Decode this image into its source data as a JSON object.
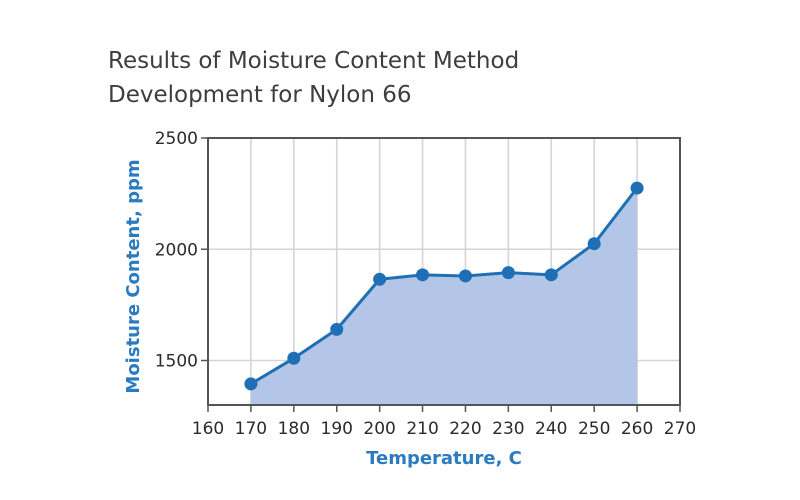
{
  "chart_data": {
    "type": "area",
    "title_lines": [
      "Results of Moisture Content Method",
      "Development for Nylon 66"
    ],
    "xlabel": "Temperature, C",
    "ylabel": "Moisture Content, ppm",
    "x": [
      170,
      180,
      190,
      200,
      210,
      220,
      230,
      240,
      250,
      260
    ],
    "values": [
      1395,
      1510,
      1640,
      1865,
      1885,
      1880,
      1895,
      1885,
      2025,
      2275
    ],
    "xlim": [
      160,
      270
    ],
    "ylim": [
      1300,
      2500
    ],
    "xticks": [
      "160",
      "170",
      "180",
      "190",
      "200",
      "210",
      "220",
      "230",
      "240",
      "250",
      "260",
      "270"
    ],
    "yticks": [
      "1500",
      "2000",
      "2500"
    ],
    "grid": true,
    "colors": {
      "line": "#1f6fb5",
      "fill": "#b3c6e7",
      "grid": "#d4d4d4",
      "axis": "#555555",
      "axis_title": "#2a7bbf"
    }
  }
}
